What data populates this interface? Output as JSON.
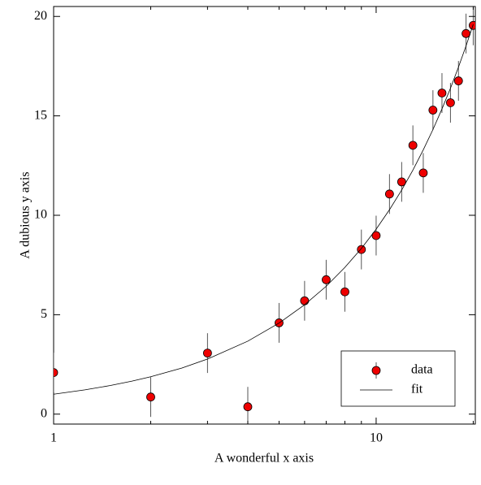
{
  "chart_data": {
    "type": "scatter",
    "xlabel": "A wonderful x axis",
    "ylabel": "A dubious y axis",
    "xscale": "log",
    "xlim": [
      1,
      20.3
    ],
    "ylim": [
      -0.5,
      20.5
    ],
    "xticks": [
      1,
      10
    ],
    "xminorticks": [
      2,
      3,
      4,
      5,
      6,
      7,
      8,
      9,
      20
    ],
    "yticks": [
      0,
      5,
      10,
      15,
      20
    ],
    "legend": "lower right",
    "series": [
      {
        "name": "data",
        "color": "#ee0000",
        "x": [
          1,
          2,
          3,
          4,
          5,
          6,
          7,
          8,
          9,
          10,
          11,
          12,
          13,
          14,
          15,
          16,
          17,
          18,
          19,
          20
        ],
        "values": [
          2.09,
          0.86,
          3.07,
          0.37,
          4.59,
          5.7,
          6.76,
          6.15,
          8.28,
          8.98,
          11.07,
          11.68,
          13.52,
          12.13,
          15.29,
          16.15,
          15.66,
          16.76,
          19.14,
          19.55
        ],
        "errors": [
          1,
          1,
          1,
          1,
          1,
          1,
          1,
          1,
          1,
          1,
          1,
          1,
          1,
          1,
          1,
          1,
          1,
          1,
          1,
          1
        ]
      },
      {
        "name": "fit",
        "color": "#000000",
        "x": [
          1,
          1.25,
          1.5,
          1.75,
          2,
          2.5,
          3,
          4,
          5,
          6,
          7,
          8,
          9,
          10,
          11,
          12,
          13,
          14,
          15,
          16,
          17,
          18,
          19,
          20
        ],
        "values": [
          1.0,
          1.22,
          1.44,
          1.66,
          1.88,
          2.32,
          2.77,
          3.67,
          4.58,
          5.5,
          6.43,
          7.38,
          8.33,
          9.3,
          10.28,
          11.27,
          12.27,
          13.29,
          14.31,
          15.35,
          16.39,
          17.45,
          18.52,
          19.6
        ]
      }
    ]
  }
}
